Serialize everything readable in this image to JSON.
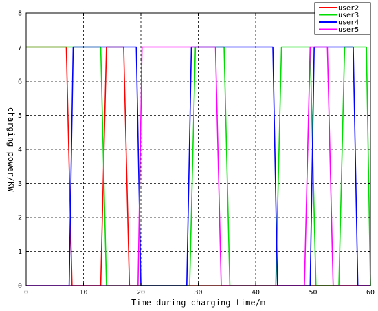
{
  "chart_data": {
    "type": "line",
    "xlabel": "Time during charging time/m",
    "ylabel": "charging power/KW",
    "xlim": [
      0,
      60
    ],
    "ylim": [
      0,
      8
    ],
    "xticks": [
      0,
      10,
      20,
      30,
      40,
      50,
      60
    ],
    "yticks": [
      0,
      1,
      2,
      3,
      4,
      5,
      6,
      7,
      8
    ],
    "grid": true,
    "legend_position": "top-right",
    "series": [
      {
        "name": "user2",
        "color": "#ff0000",
        "x": [
          0,
          7.0,
          8.0,
          13.0,
          14.0,
          17.0,
          18.0,
          60
        ],
        "y": [
          7,
          7,
          0,
          0,
          7,
          7,
          0,
          0
        ]
      },
      {
        "name": "user3",
        "color": "#00dd00",
        "x": [
          0,
          13.0,
          14.0,
          28.5,
          29.5,
          34.5,
          35.5,
          43.5,
          44.5,
          49.5,
          50.5,
          54.5,
          55.5,
          59.3,
          60
        ],
        "y": [
          7,
          7,
          0,
          0,
          7,
          7,
          0,
          0,
          7,
          7,
          0,
          0,
          7,
          7,
          0
        ]
      },
      {
        "name": "user4",
        "color": "#0000ff",
        "x": [
          0,
          7.5,
          8.2,
          19.2,
          20.0,
          28.0,
          28.8,
          43.0,
          43.8,
          49.5,
          50.2,
          57.0,
          57.8,
          60
        ],
        "y": [
          0,
          0,
          7,
          7,
          0,
          0,
          7,
          7,
          0,
          0,
          7,
          7,
          0,
          0
        ]
      },
      {
        "name": "user5",
        "color": "#ff00ff",
        "x": [
          0,
          19.5,
          20.2,
          33.0,
          34.0,
          48.5,
          49.5,
          52.5,
          53.5,
          60
        ],
        "y": [
          0,
          0,
          7,
          7,
          0,
          0,
          7,
          7,
          0,
          0
        ]
      }
    ]
  }
}
